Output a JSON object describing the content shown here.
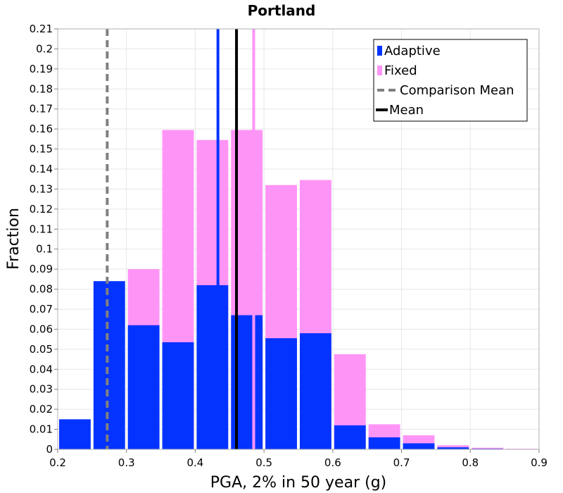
{
  "chart_data": {
    "type": "bar",
    "title": "Portland",
    "xlabel": "PGA, 2% in 50 year (g)",
    "ylabel": "Fraction",
    "xlim": [
      0.2,
      0.9
    ],
    "ylim": [
      0,
      0.21
    ],
    "bin_width": 0.05,
    "x_ticks": [
      "0.2",
      "0.3",
      "0.4",
      "0.5",
      "0.6",
      "0.7",
      "0.8",
      "0.9"
    ],
    "y_ticks": [
      "0",
      "0.01",
      "0.02",
      "0.03",
      "0.04",
      "0.05",
      "0.06",
      "0.07",
      "0.08",
      "0.09",
      "0.1",
      "0.11",
      "0.12",
      "0.13",
      "0.14",
      "0.15",
      "0.16",
      "0.17",
      "0.18",
      "0.19",
      "0.2",
      "0.21"
    ],
    "grid": true,
    "legend_position": "top-right",
    "bin_starts": [
      0.2,
      0.25,
      0.3,
      0.35,
      0.4,
      0.45,
      0.5,
      0.55,
      0.6,
      0.65,
      0.7,
      0.75,
      0.8,
      0.85
    ],
    "series": [
      {
        "name": "Adaptive",
        "color": "#0433ff",
        "values": [
          0.015,
          0.084,
          0.062,
          0.0535,
          0.082,
          0.067,
          0.0555,
          0.058,
          0.012,
          0.006,
          0.003,
          0.001,
          0.0003,
          0.0001
        ]
      },
      {
        "name": "Fixed",
        "color": "#ff94f7",
        "values": [
          0.0,
          0.0,
          0.09,
          0.1595,
          0.1545,
          0.1595,
          0.132,
          0.1345,
          0.0475,
          0.0125,
          0.007,
          0.002,
          0.0008,
          0.0003
        ]
      }
    ],
    "lines": [
      {
        "name": "Comparison Mean",
        "x": 0.272,
        "color": "#808080",
        "style": "dashed"
      },
      {
        "name": "Mean",
        "x": 0.46,
        "color": "#000000",
        "style": "solid"
      },
      {
        "name": "Adaptive mean",
        "x": 0.433,
        "color": "#0433ff",
        "style": "solid"
      },
      {
        "name": "Fixed mean",
        "x": 0.485,
        "color": "#ff94f7",
        "style": "solid"
      }
    ],
    "legend": [
      {
        "label": "Adaptive",
        "color": "#0433ff",
        "kind": "bar"
      },
      {
        "label": "Fixed",
        "color": "#ff94f7",
        "kind": "bar"
      },
      {
        "label": "Comparison Mean",
        "color": "#808080",
        "kind": "dashed"
      },
      {
        "label": "Mean",
        "color": "#000000",
        "kind": "solid"
      }
    ]
  }
}
